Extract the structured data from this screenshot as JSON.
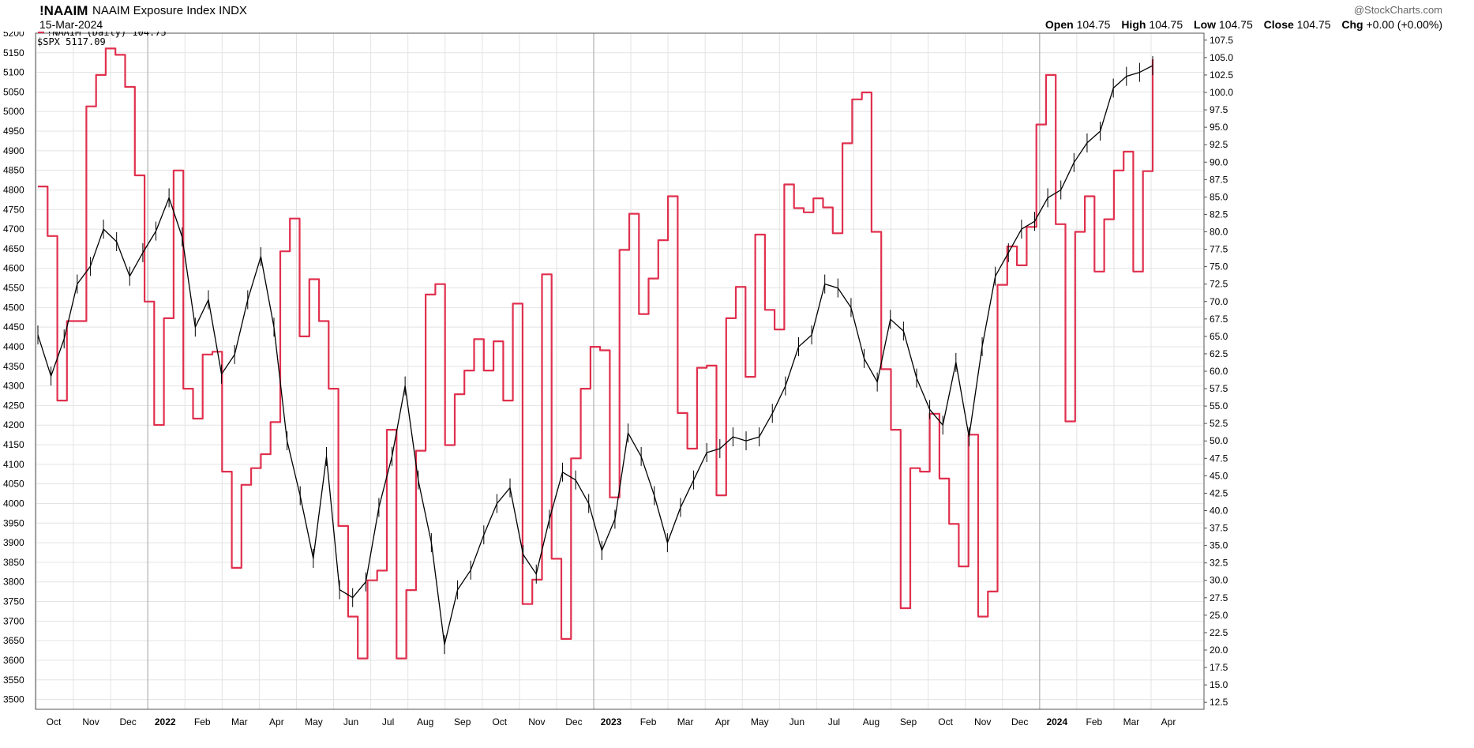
{
  "header": {
    "ticker": "!NAAIM",
    "name": "NAAIM Exposure Index INDX",
    "date": "15-Mar-2024",
    "brand": "@StockCharts.com",
    "ohlc": {
      "open_label": "Open",
      "open": "104.75",
      "high_label": "High",
      "high": "104.75",
      "low_label": "Low",
      "low": "104.75",
      "close_label": "Close",
      "close": "104.75",
      "chg_label": "Chg",
      "chg": "+0.00 (+0.00%)"
    }
  },
  "chart_data": {
    "type": "line",
    "legend": [
      {
        "label": "!NAAIM (Daily) 104.75",
        "color": "#e0304e"
      },
      {
        "label": "$SPX 5117.09",
        "color": "#000000"
      }
    ],
    "x_ticks": [
      {
        "label": "Oct",
        "bold": false
      },
      {
        "label": "Nov",
        "bold": false
      },
      {
        "label": "Dec",
        "bold": false
      },
      {
        "label": "2022",
        "bold": true
      },
      {
        "label": "Feb",
        "bold": false
      },
      {
        "label": "Mar",
        "bold": false
      },
      {
        "label": "Apr",
        "bold": false
      },
      {
        "label": "May",
        "bold": false
      },
      {
        "label": "Jun",
        "bold": false
      },
      {
        "label": "Jul",
        "bold": false
      },
      {
        "label": "Aug",
        "bold": false
      },
      {
        "label": "Sep",
        "bold": false
      },
      {
        "label": "Oct",
        "bold": false
      },
      {
        "label": "Nov",
        "bold": false
      },
      {
        "label": "Dec",
        "bold": false
      },
      {
        "label": "2023",
        "bold": true
      },
      {
        "label": "Feb",
        "bold": false
      },
      {
        "label": "Mar",
        "bold": false
      },
      {
        "label": "Apr",
        "bold": false
      },
      {
        "label": "May",
        "bold": false
      },
      {
        "label": "Jun",
        "bold": false
      },
      {
        "label": "Jul",
        "bold": false
      },
      {
        "label": "Aug",
        "bold": false
      },
      {
        "label": "Sep",
        "bold": false
      },
      {
        "label": "Oct",
        "bold": false
      },
      {
        "label": "Nov",
        "bold": false
      },
      {
        "label": "Dec",
        "bold": false
      },
      {
        "label": "2024",
        "bold": true
      },
      {
        "label": "Feb",
        "bold": false
      },
      {
        "label": "Mar",
        "bold": false
      },
      {
        "label": "Apr",
        "bold": false
      }
    ],
    "left_axis": {
      "min": 3475,
      "max": 5200,
      "ticks": [
        3500,
        3550,
        3600,
        3650,
        3700,
        3750,
        3800,
        3850,
        3900,
        3950,
        4000,
        4050,
        4100,
        4150,
        4200,
        4250,
        4300,
        4350,
        4400,
        4450,
        4500,
        4550,
        4600,
        4650,
        4700,
        4750,
        4800,
        4850,
        4900,
        4950,
        5000,
        5050,
        5100,
        5150,
        5200
      ]
    },
    "right_axis": {
      "min": 11.5,
      "max": 108.5,
      "ticks": [
        "12.5",
        "15.0",
        "17.5",
        "20.0",
        "22.5",
        "25.0",
        "27.5",
        "30.0",
        "32.5",
        "35.0",
        "37.5",
        "40.0",
        "42.5",
        "45.0",
        "47.5",
        "50.0",
        "52.5",
        "55.0",
        "57.5",
        "60.0",
        "62.5",
        "65.0",
        "67.5",
        "70.0",
        "72.5",
        "75.0",
        "77.5",
        "80.0",
        "82.5",
        "85.0",
        "87.5",
        "90.0",
        "92.5",
        "95.0",
        "97.5",
        "100.0",
        "102.5",
        "105.0",
        "107.5"
      ]
    },
    "series": [
      {
        "name": "!NAAIM (Daily)",
        "axis": "right",
        "color": "#e0304e",
        "values": [
          86.5,
          79.4,
          55.8,
          67.2,
          67.2,
          98.0,
          102.5,
          106.3,
          105.4,
          100.8,
          88.1,
          70.0,
          52.3,
          67.6,
          88.8,
          57.5,
          53.2,
          62.4,
          62.8,
          45.6,
          31.8,
          43.7,
          46.1,
          48.1,
          52.7,
          77.2,
          81.9,
          65.0,
          73.2,
          67.2,
          57.5,
          37.8,
          24.8,
          18.8,
          30.0,
          31.4,
          51.6,
          18.8,
          28.6,
          48.6,
          71.0,
          72.5,
          49.4,
          56.7,
          60.1,
          64.6,
          60.1,
          64.3,
          55.8,
          69.7,
          26.6,
          30.1,
          73.9,
          33.1,
          21.6,
          47.5,
          57.5,
          63.5,
          63.0,
          41.9,
          77.4,
          82.6,
          68.2,
          73.3,
          78.8,
          85.1,
          54.0,
          48.9,
          60.5,
          60.8,
          42.2,
          67.6,
          72.1,
          59.2,
          79.6,
          68.8,
          66.0,
          86.8,
          83.4,
          82.8,
          84.8,
          83.5,
          79.8,
          92.7,
          99.0,
          100.0,
          80.0,
          60.3,
          51.6,
          26.0,
          46.1,
          45.6,
          53.9,
          44.6,
          38.1,
          32.0,
          50.9,
          24.8,
          28.4,
          72.4,
          77.9,
          75.2,
          80.7,
          95.4,
          102.5,
          81.1,
          52.8,
          80.0,
          85.1,
          74.3,
          81.8,
          88.8,
          91.5,
          74.3,
          88.7,
          104.75
        ]
      },
      {
        "name": "$SPX",
        "axis": "left",
        "color": "#000000",
        "values": [
          4430,
          4325,
          4420,
          4560,
          4605,
          4700,
          4668,
          4580,
          4640,
          4695,
          4780,
          4680,
          4450,
          4520,
          4330,
          4380,
          4520,
          4630,
          4450,
          4160,
          4020,
          3860,
          4120,
          3780,
          3760,
          3800,
          3990,
          4120,
          4300,
          4060,
          3900,
          3640,
          3780,
          3830,
          3920,
          4000,
          4040,
          3870,
          3820,
          3960,
          4080,
          4060,
          4000,
          3880,
          3960,
          4180,
          4120,
          4020,
          3900,
          3990,
          4060,
          4130,
          4140,
          4170,
          4160,
          4170,
          4230,
          4300,
          4400,
          4430,
          4560,
          4550,
          4500,
          4370,
          4310,
          4470,
          4440,
          4320,
          4240,
          4200,
          4360,
          4170,
          4400,
          4580,
          4640,
          4700,
          4720,
          4780,
          4800,
          4870,
          4920,
          4950,
          5060,
          5090,
          5100,
          5117.09
        ]
      }
    ]
  }
}
